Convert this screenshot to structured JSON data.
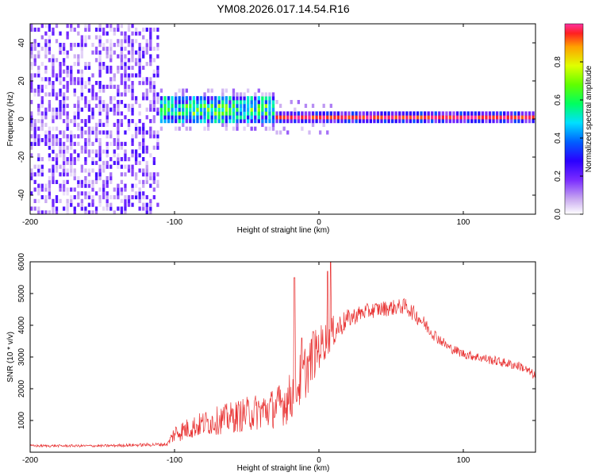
{
  "figure": {
    "title": "YM08.2026.017.14.54.R16"
  },
  "chart_data": [
    {
      "type": "heatmap",
      "title": "",
      "xlabel": "Height of straight line (km)",
      "ylabel": "Frequency (Hz)",
      "xlim": [
        -200,
        150
      ],
      "ylim": [
        -50,
        50
      ],
      "x_ticks": [
        -200,
        -100,
        0,
        100
      ],
      "x_tick_labels": [
        "-200",
        "-100",
        "0",
        "100"
      ],
      "y_ticks": [
        -40,
        -20,
        0,
        20,
        40
      ],
      "y_tick_labels": [
        "-40",
        "-20",
        "0",
        "20",
        "40"
      ],
      "colorbar": {
        "label": "Normalized spectral amplitude",
        "range": [
          0,
          1
        ],
        "ticks": [
          0.0,
          0.2,
          0.4,
          0.6,
          0.8
        ],
        "tick_labels": [
          "0.0",
          "0.2",
          "0.4",
          "0.6",
          "0.8"
        ],
        "colormap": [
          "#ffffff",
          "#c8a8f0",
          "#7a2cff",
          "#2a00ff",
          "#0060ff",
          "#00e0ff",
          "#00ff60",
          "#60ff00",
          "#e0ff00",
          "#ffa000",
          "#ff2020",
          "#ff30a0"
        ]
      },
      "regions": [
        {
          "x_range": [
            -200,
            -110
          ],
          "freq_range": [
            -50,
            50
          ],
          "amplitude": "0.05-0.2 scattered"
        },
        {
          "x_range": [
            -110,
            -30
          ],
          "freq_center": 4,
          "freq_halfwidth": 7,
          "amplitude": "0.3-0.6"
        },
        {
          "x_range": [
            -30,
            150
          ],
          "freq_center": 0,
          "freq_halfwidth": 1.5,
          "amplitude": "0.8-1.0"
        }
      ]
    },
    {
      "type": "line",
      "title": "",
      "xlabel": "Height of straight line (km)",
      "ylabel": "SNR (10 * v/v)",
      "xlim": [
        -200,
        150
      ],
      "ylim": [
        0,
        6000
      ],
      "x_ticks": [
        -200,
        -100,
        0,
        100
      ],
      "x_tick_labels": [
        "-200",
        "-100",
        "0",
        "100"
      ],
      "y_ticks": [
        1000,
        2000,
        3000,
        4000,
        5000,
        6000
      ],
      "y_tick_labels": [
        "1000",
        "2000",
        "3000",
        "4000",
        "5000",
        "6000"
      ],
      "series": [
        {
          "name": "SNR",
          "color": "#e83030",
          "x": [
            -200,
            -150,
            -105,
            -100,
            -90,
            -80,
            -70,
            -60,
            -50,
            -40,
            -30,
            -20,
            -10,
            0,
            10,
            20,
            30,
            40,
            50,
            60,
            70,
            80,
            90,
            100,
            110,
            120,
            130,
            140,
            150
          ],
          "y": [
            200,
            200,
            250,
            600,
            750,
            900,
            1000,
            1100,
            1200,
            1300,
            1400,
            1700,
            2500,
            3300,
            3800,
            4200,
            4400,
            4500,
            4550,
            4600,
            4200,
            3700,
            3300,
            3100,
            3000,
            2900,
            2800,
            2700,
            2400
          ],
          "noise_amplitude": [
            40,
            40,
            60,
            300,
            350,
            400,
            450,
            500,
            550,
            600,
            650,
            800,
            900,
            700,
            500,
            300,
            250,
            250,
            250,
            250,
            250,
            200,
            150,
            150,
            150,
            150,
            150,
            150,
            150
          ],
          "spikes": [
            {
              "x": -17,
              "y": 5500
            },
            {
              "x": -12,
              "y": 3600
            },
            {
              "x": -4,
              "y": 3800
            },
            {
              "x": 6,
              "y": 5700
            },
            {
              "x": 8,
              "y": 6000
            }
          ]
        }
      ]
    }
  ]
}
